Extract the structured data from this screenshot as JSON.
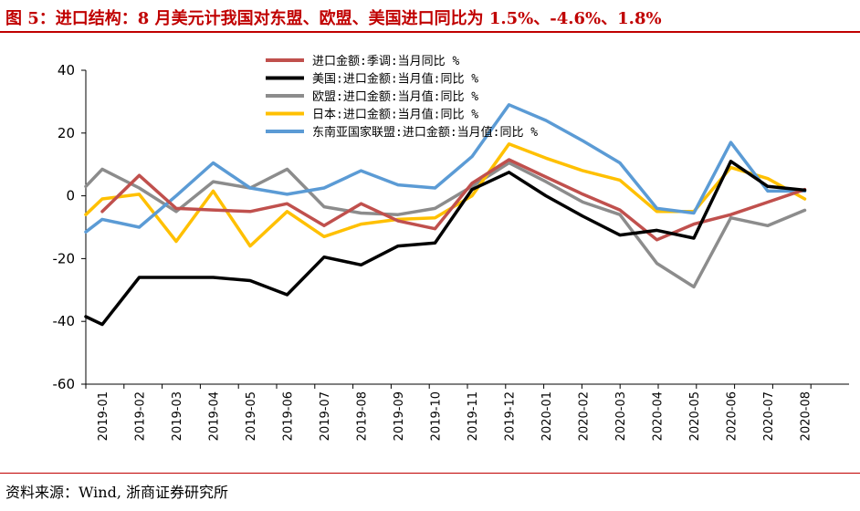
{
  "title": "图 5：进口结构：8 月美元计我国对东盟、欧盟、美国进口同比为 1.5%、-4.6%、1.8%",
  "source": "资料来源：Wind, 浙商证券研究所",
  "chart_data": {
    "type": "line",
    "categories": [
      "2019-01",
      "2019-02",
      "2019-03",
      "2019-04",
      "2019-05",
      "2019-06",
      "2019-07",
      "2019-08",
      "2019-09",
      "2019-10",
      "2019-11",
      "2019-12",
      "2020-01",
      "2020-02",
      "2020-03",
      "2020-04",
      "2020-05",
      "2020-06",
      "2020-07",
      "2020-08"
    ],
    "ylim": [
      -60,
      40
    ],
    "yticks": [
      40,
      20,
      0,
      -20,
      -40,
      -60
    ],
    "ytick_labels": [
      "40",
      "20",
      "0",
      "-20",
      "-40",
      "-60"
    ],
    "grid": false,
    "legend_position": "top-center",
    "series": [
      {
        "name": "进口金额:季调:当月同比 %",
        "color": "#c0504d",
        "values": [
          -5,
          6.5,
          -4,
          -4.5,
          -5,
          -2.5,
          -9.5,
          -2.5,
          -8,
          -10.5,
          4,
          11.5,
          6,
          0.5,
          -4.5,
          -14,
          -9,
          -6,
          -2,
          2
        ]
      },
      {
        "name": "美国:进口金额:当月值:同比 %",
        "color": "#000000",
        "start": [
          -38.5
        ],
        "values": [
          -41,
          -26,
          -26,
          -26,
          -27,
          -31.5,
          -19.5,
          -22,
          -16,
          -15,
          2,
          7.5,
          0,
          -6.5,
          -12.5,
          -11,
          -13.5,
          11,
          3,
          1.8
        ]
      },
      {
        "name": "欧盟:进口金额:当月值:同比 %",
        "color": "#8c8c8c",
        "start": [
          3
        ],
        "values": [
          8.5,
          2.5,
          -5,
          4.5,
          2.5,
          8.5,
          -3.5,
          -5.5,
          -6,
          -4,
          3,
          10.5,
          4.5,
          -2,
          -6,
          -21.5,
          -29,
          -7,
          -9.5,
          -4.6
        ]
      },
      {
        "name": "日本:进口金额:当月值:同比 %",
        "color": "#ffc000",
        "start": [
          -6
        ],
        "values": [
          -1,
          0.5,
          -14.5,
          1.5,
          -16,
          -5,
          -13,
          -9,
          -7.5,
          -7,
          0,
          16.5,
          12,
          8,
          5,
          -5,
          -5,
          9,
          5.5,
          -1
        ]
      },
      {
        "name": "东南亚国家联盟:进口金额:当月值:同比 %",
        "color": "#5b9bd5",
        "start": [
          -11.5
        ],
        "values": [
          -7.5,
          -10,
          0,
          10.5,
          2.5,
          0.5,
          2.5,
          8,
          3.5,
          2.5,
          12.5,
          29,
          24,
          17.5,
          10.5,
          -4,
          -5.5,
          17,
          1.5,
          1.5
        ]
      }
    ]
  }
}
